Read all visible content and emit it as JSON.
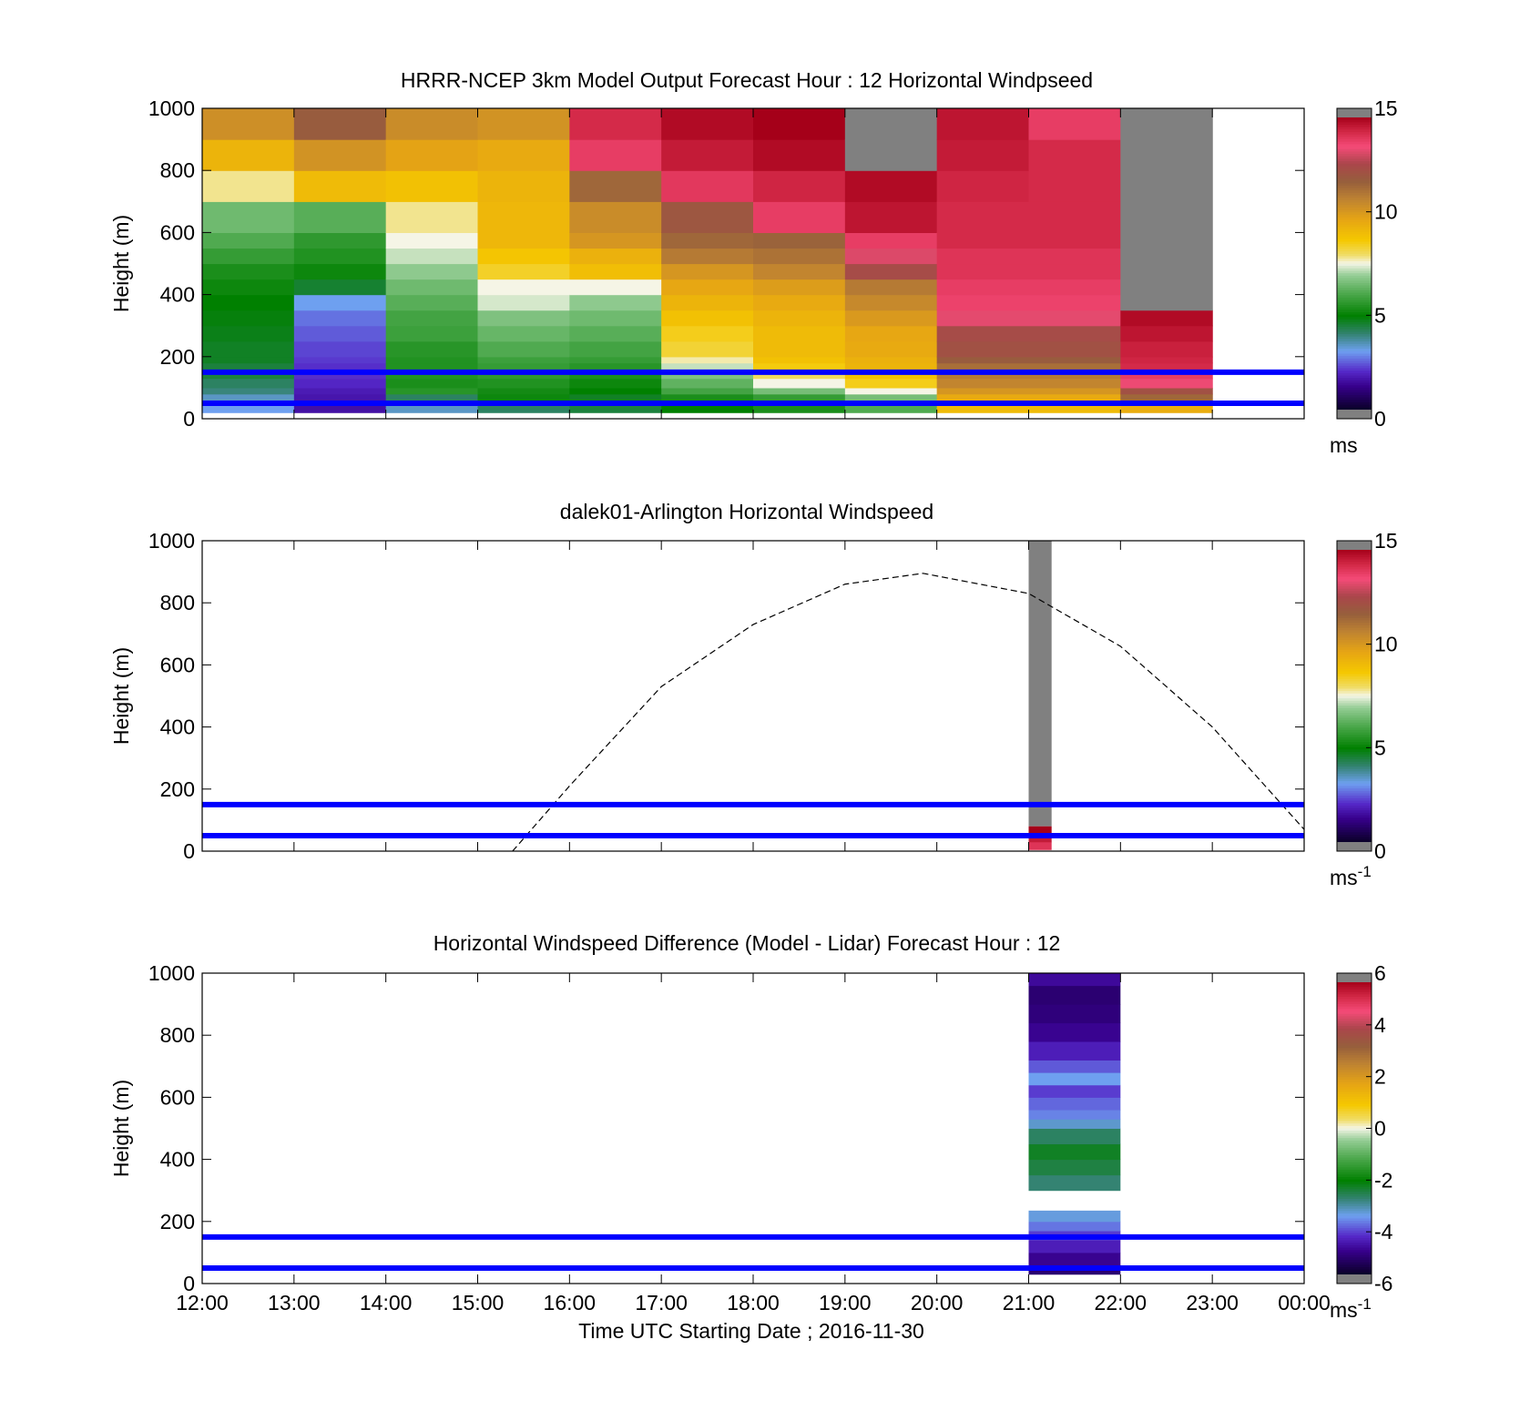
{
  "figure": {
    "xlabel": "Time UTC  Starting Date ; 2016-11-30",
    "colors": {
      "reference_lines": "#0000ff",
      "missing": "#808080",
      "dashed_curve": "#000000"
    }
  },
  "chart_data": [
    {
      "type": "heatmap",
      "title": "HRRR-NCEP 3km Model Output   Forecast Hour : 12 Horizontal Windpseed",
      "ylabel": "Height (m)",
      "ylim": [
        0,
        1000
      ],
      "y_ticks": [
        "0",
        "200",
        "400",
        "600",
        "800",
        "1000"
      ],
      "x_tick_labels": [
        "12:00",
        "13:00",
        "14:00",
        "15:00",
        "16:00",
        "17:00",
        "18:00",
        "19:00",
        "20:00",
        "21:00",
        "22:00",
        "23:00",
        "00:00"
      ],
      "show_x_tick_labels": false,
      "colorbar": {
        "min": 0,
        "max": 15,
        "ticks": [
          "0",
          "5",
          "10",
          "15"
        ],
        "unit": "ms",
        "unit_sup": ""
      },
      "reference_lines_m": [
        50,
        150
      ],
      "cell_edges_m": [
        20,
        50,
        80,
        100,
        130,
        150,
        180,
        200,
        250,
        300,
        350,
        400,
        450,
        500,
        550,
        600,
        700,
        800,
        900,
        1000
      ],
      "series": [
        {
          "time": "12:00",
          "top_m": 1000,
          "values": [
            3.0,
            3.3,
            3.8,
            4.0,
            4.3,
            4.3,
            4.5,
            4.5,
            4.6,
            4.7,
            4.8,
            5.0,
            5.2,
            5.6,
            6.0,
            6.4,
            7.8,
            9.3,
            10.4
          ]
        },
        {
          "time": "13:00",
          "top_m": 1000,
          "values": [
            1.5,
            1.6,
            1.7,
            1.9,
            2.0,
            2.0,
            2.1,
            2.2,
            2.4,
            2.6,
            3.0,
            4.4,
            5.0,
            5.3,
            5.5,
            6.1,
            9.1,
            10.3,
            11.8
          ]
        },
        {
          "time": "14:00",
          "top_m": 1000,
          "values": [
            3.3,
            4.0,
            5.4,
            5.2,
            5.3,
            5.3,
            5.3,
            5.4,
            5.7,
            5.8,
            6.1,
            6.4,
            6.8,
            7.2,
            7.5,
            7.8,
            8.9,
            9.8,
            10.5
          ]
        },
        {
          "time": "15:00",
          "top_m": 1000,
          "values": [
            4.0,
            5.0,
            5.1,
            5.3,
            5.5,
            5.6,
            5.7,
            6.0,
            6.3,
            6.6,
            7.3,
            7.5,
            8.4,
            8.8,
            9.2,
            9.2,
            9.3,
            9.6,
            10.3
          ]
        },
        {
          "time": "16:00",
          "top_m": 1000,
          "values": [
            4.3,
            4.5,
            4.8,
            5.0,
            5.2,
            5.4,
            5.6,
            5.8,
            6.1,
            6.4,
            6.8,
            7.5,
            9.0,
            9.4,
            10.2,
            10.5,
            11.5,
            13.8,
            14.2
          ]
        },
        {
          "time": "17:00",
          "top_m": 1000,
          "values": [
            4.8,
            5.2,
            5.8,
            6.2,
            6.6,
            7.2,
            7.7,
            8.3,
            8.5,
            8.9,
            9.3,
            9.7,
            10.2,
            11.0,
            11.5,
            12.0,
            13.9,
            14.5,
            14.8
          ]
        },
        {
          "time": "18:00",
          "top_m": 1000,
          "values": [
            5.2,
            5.6,
            6.5,
            7.5,
            8.0,
            8.6,
            8.9,
            9.1,
            9.1,
            9.3,
            9.6,
            10.0,
            10.7,
            11.2,
            11.6,
            13.8,
            14.3,
            14.8,
            15.0
          ]
        },
        {
          "time": "19:00",
          "top_m": 1000,
          "values": [
            6.0,
            6.5,
            7.5,
            8.5,
            8.9,
            9.3,
            9.4,
            9.6,
            9.7,
            10.1,
            10.6,
            11.0,
            12.4,
            13.2,
            13.8,
            14.6,
            14.8,
            15.5,
            15.5
          ]
        },
        {
          "time": "20:00",
          "top_m": 1000,
          "values": [
            9.1,
            9.6,
            10.2,
            10.7,
            11.0,
            11.3,
            11.8,
            12.2,
            12.4,
            13.3,
            13.7,
            13.8,
            14.0,
            14.0,
            14.2,
            14.2,
            14.3,
            14.5,
            14.6
          ]
        },
        {
          "time": "21:00",
          "top_m": 1000,
          "values": [
            9.1,
            9.6,
            10.2,
            10.7,
            11.0,
            11.3,
            11.8,
            12.2,
            12.4,
            13.3,
            13.7,
            13.8,
            14.0,
            14.0,
            14.2,
            14.2,
            14.2,
            14.2,
            13.8
          ]
        },
        {
          "time": "22:00",
          "top_m": 350,
          "values": [
            9.5,
            11.5,
            12.2,
            13.4,
            13.8,
            14.2,
            14.3,
            14.4,
            14.6,
            14.8,
            15.5,
            15.5,
            15.5,
            15.5,
            15.5,
            15.5,
            15.5,
            15.5,
            15.5
          ]
        }
      ]
    },
    {
      "type": "heatmap",
      "title": "dalek01-Arlington  Horizontal Windspeed",
      "ylabel": "Height (m)",
      "ylim": [
        0,
        1000
      ],
      "y_ticks": [
        "0",
        "200",
        "400",
        "600",
        "800",
        "1000"
      ],
      "x_tick_labels": [
        "12:00",
        "13:00",
        "14:00",
        "15:00",
        "16:00",
        "17:00",
        "18:00",
        "19:00",
        "20:00",
        "21:00",
        "22:00",
        "23:00",
        "00:00"
      ],
      "show_x_tick_labels": false,
      "colorbar": {
        "min": 0,
        "max": 15,
        "ticks": [
          "0",
          "5",
          "10",
          "15"
        ],
        "unit": "ms",
        "unit_sup": "-1"
      },
      "reference_lines_m": [
        50,
        150
      ],
      "column": {
        "time": "21:00",
        "width_hours": 0.25,
        "missing_from_m": 80,
        "missing_to_m": 1000
      },
      "cells": [
        {
          "y0_m": 5,
          "y1_m": 30,
          "value": 14.0
        },
        {
          "y0_m": 30,
          "y1_m": 55,
          "value": 14.5
        },
        {
          "y0_m": 55,
          "y1_m": 80,
          "value": 15.0
        }
      ],
      "dashed_curve": {
        "label": "",
        "x_hours": [
          15.38,
          16.0,
          17.0,
          18.0,
          19.0,
          19.85,
          21.0,
          22.0,
          23.0,
          24.0
        ],
        "y_m": [
          0,
          210,
          530,
          730,
          860,
          895,
          830,
          660,
          400,
          70
        ]
      }
    },
    {
      "type": "heatmap",
      "title": "Horizontal Windspeed Difference (Model - Lidar) Forecast Hour : 12",
      "ylabel": "Height (m)",
      "xlabel": "Time UTC  Starting Date ; 2016-11-30",
      "ylim": [
        0,
        1000
      ],
      "y_ticks": [
        "0",
        "200",
        "400",
        "600",
        "800",
        "1000"
      ],
      "x_tick_labels": [
        "12:00",
        "13:00",
        "14:00",
        "15:00",
        "16:00",
        "17:00",
        "18:00",
        "19:00",
        "20:00",
        "21:00",
        "22:00",
        "23:00",
        "00:00"
      ],
      "show_x_tick_labels": true,
      "colorbar": {
        "min": -6,
        "max": 6,
        "ticks": [
          "-6",
          "-4",
          "-2",
          "0",
          "2",
          "4",
          "6"
        ],
        "unit": "ms",
        "unit_sup": "-1"
      },
      "reference_lines_m": [
        50,
        150
      ],
      "column": {
        "time": "21:00",
        "width_hours": 1.0
      },
      "bands": [
        {
          "y0_m": 30,
          "y1_m": 60,
          "value": -5.3
        },
        {
          "y0_m": 60,
          "y1_m": 100,
          "value": -5.0
        },
        {
          "y0_m": 100,
          "y1_m": 140,
          "value": -4.6
        },
        {
          "y0_m": 140,
          "y1_m": 170,
          "value": -4.3
        },
        {
          "y0_m": 170,
          "y1_m": 200,
          "value": -3.9
        },
        {
          "y0_m": 200,
          "y1_m": 235,
          "value": -3.5
        },
        {
          "y0_m": 300,
          "y1_m": 350,
          "value": -2.9
        },
        {
          "y0_m": 350,
          "y1_m": 400,
          "value": -2.6
        },
        {
          "y0_m": 400,
          "y1_m": 450,
          "value": -2.4
        },
        {
          "y0_m": 450,
          "y1_m": 500,
          "value": -2.8
        },
        {
          "y0_m": 500,
          "y1_m": 530,
          "value": -3.4
        },
        {
          "y0_m": 530,
          "y1_m": 560,
          "value": -3.8
        },
        {
          "y0_m": 560,
          "y1_m": 600,
          "value": -4.0
        },
        {
          "y0_m": 600,
          "y1_m": 640,
          "value": -4.3
        },
        {
          "y0_m": 640,
          "y1_m": 680,
          "value": -3.6
        },
        {
          "y0_m": 680,
          "y1_m": 720,
          "value": -4.1
        },
        {
          "y0_m": 720,
          "y1_m": 780,
          "value": -4.6
        },
        {
          "y0_m": 780,
          "y1_m": 840,
          "value": -5.0
        },
        {
          "y0_m": 840,
          "y1_m": 900,
          "value": -5.2
        },
        {
          "y0_m": 900,
          "y1_m": 960,
          "value": -5.3
        },
        {
          "y0_m": 960,
          "y1_m": 1000,
          "value": -4.9
        }
      ]
    }
  ]
}
